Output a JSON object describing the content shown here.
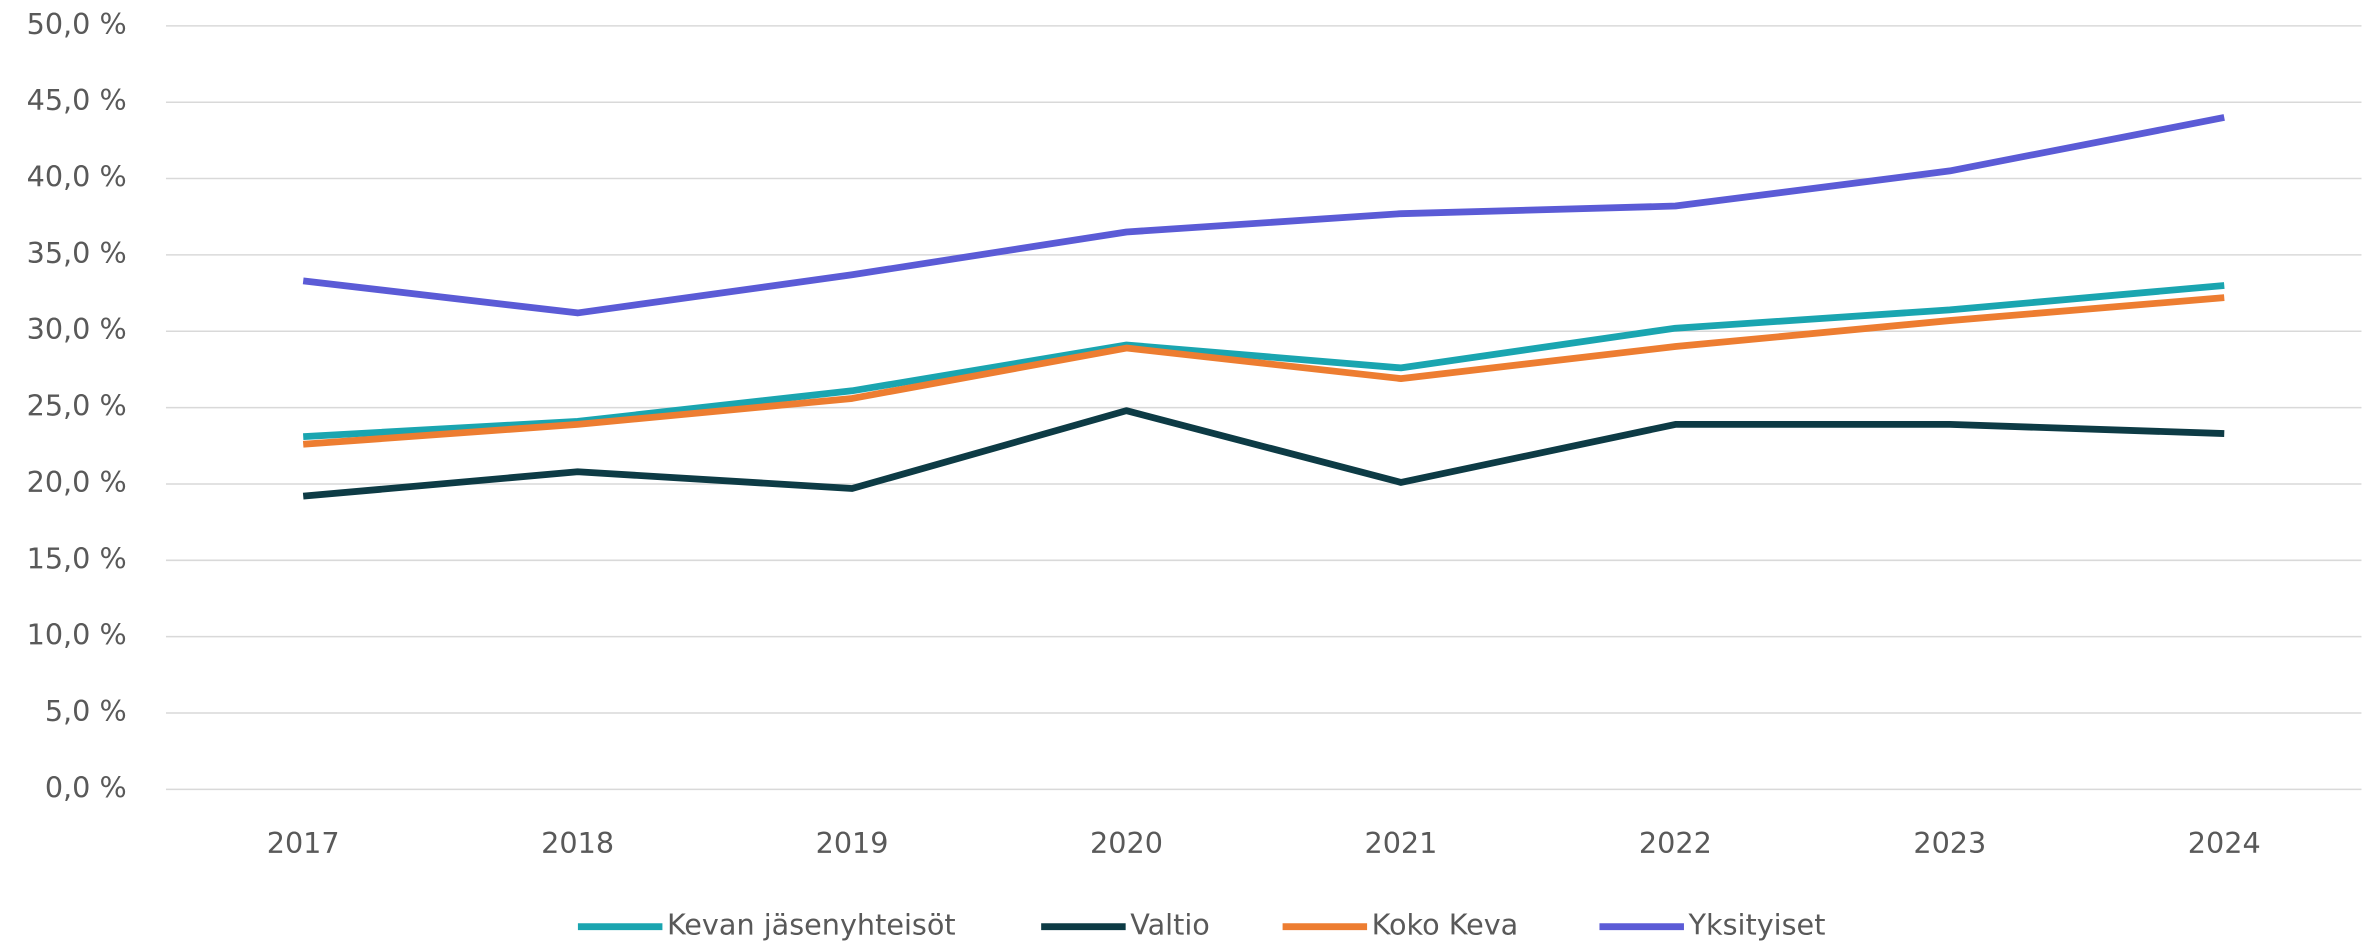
{
  "chart_data": {
    "type": "line",
    "categories": [
      "2017",
      "2018",
      "2019",
      "2020",
      "2021",
      "2022",
      "2023",
      "2024"
    ],
    "series": [
      {
        "name": "Kevan jäsenyhteisöt",
        "color": "#1aa5b0",
        "values": [
          23.1,
          24.1,
          26.1,
          29.1,
          27.6,
          30.2,
          31.4,
          33.0
        ]
      },
      {
        "name": "Valtio",
        "color": "#0d3b45",
        "values": [
          19.2,
          20.8,
          19.7,
          24.8,
          20.1,
          23.9,
          23.9,
          23.3
        ]
      },
      {
        "name": "Koko Keva",
        "color": "#ed7d31",
        "values": [
          22.6,
          23.9,
          25.6,
          28.9,
          26.9,
          29.0,
          30.7,
          32.2
        ]
      },
      {
        "name": "Yksityiset",
        "color": "#5b5bd6",
        "values": [
          33.3,
          31.2,
          33.7,
          36.5,
          37.7,
          38.2,
          40.5,
          44.0
        ]
      }
    ],
    "ylim": [
      0,
      50
    ],
    "yticks": [
      {
        "value": 0,
        "label": "0,0 %"
      },
      {
        "value": 5,
        "label": "5,0 %"
      },
      {
        "value": 10,
        "label": "10,0 %"
      },
      {
        "value": 15,
        "label": "15,0 %"
      },
      {
        "value": 20,
        "label": "20,0 %"
      },
      {
        "value": 25,
        "label": "25,0 %"
      },
      {
        "value": 30,
        "label": "30,0 %"
      },
      {
        "value": 35,
        "label": "35,0 %"
      },
      {
        "value": 40,
        "label": "40,0 %"
      },
      {
        "value": 45,
        "label": "45,0 %"
      },
      {
        "value": 50,
        "label": "50,0 %"
      }
    ],
    "grid": true,
    "legend": "bottom"
  }
}
